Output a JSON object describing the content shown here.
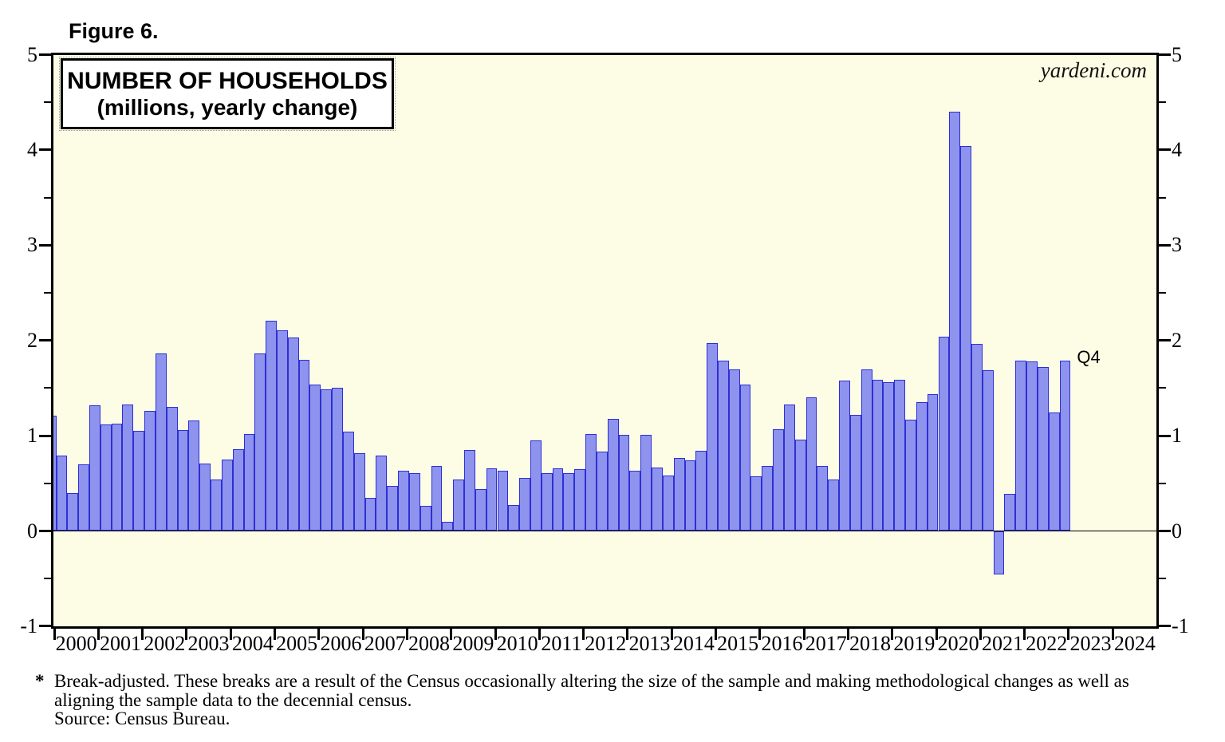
{
  "figure_label": "Figure 6.",
  "watermark": "yardeni.com",
  "chart_data": {
    "type": "bar",
    "title": "NUMBER OF HOUSEHOLDS",
    "subtitle": "(millions, yearly change)",
    "ylim": [
      -1,
      5
    ],
    "y_major_ticks": [
      5,
      4,
      3,
      2,
      1,
      0,
      -1
    ],
    "y_minor_step": 0.5,
    "x_year_start": 2000,
    "x_year_end": 2024,
    "annotation_last_bar": "Q4",
    "legend_position": "none",
    "grid": "off",
    "colors": {
      "plot_background": "#fdfde6",
      "bar_fill": "#8e93ee",
      "bar_border": "#2d2fd5",
      "axis": "#000000"
    },
    "series": [
      {
        "name": "Number of households, yearly change (millions), quarterly",
        "start_year": 1999,
        "start_quarter": 4,
        "values": [
          1.21,
          0.79,
          0.4,
          0.7,
          1.32,
          1.12,
          1.13,
          1.33,
          1.05,
          1.26,
          1.86,
          1.3,
          1.06,
          1.16,
          0.71,
          0.54,
          0.75,
          0.86,
          1.02,
          1.86,
          2.21,
          2.11,
          2.03,
          1.8,
          1.54,
          1.49,
          1.5,
          1.04,
          0.82,
          0.35,
          0.79,
          0.47,
          0.63,
          0.61,
          0.26,
          0.68,
          0.1,
          0.54,
          0.85,
          0.44,
          0.66,
          0.63,
          0.27,
          0.56,
          0.95,
          0.61,
          0.66,
          0.61,
          0.65,
          1.02,
          0.83,
          1.18,
          1.01,
          0.63,
          1.01,
          0.67,
          0.58,
          0.77,
          0.74,
          0.84,
          1.97,
          1.79,
          1.7,
          1.54,
          0.57,
          0.68,
          1.07,
          1.33,
          0.96,
          1.4,
          0.68,
          0.54,
          1.58,
          1.22,
          1.7,
          1.59,
          1.56,
          1.59,
          1.17,
          1.35,
          1.44,
          2.04,
          4.4,
          4.04,
          1.96,
          1.69,
          -0.46,
          0.39,
          1.79,
          1.78,
          1.72,
          1.24,
          1.79
        ]
      }
    ]
  },
  "footnote": {
    "marker": "*",
    "line1": "Break-adjusted. These breaks are a result of the Census occasionally altering the size of the sample and making methodological changes as well as",
    "line2": "aligning the sample data to the decennial census.",
    "line3": "Source: Census Bureau."
  }
}
